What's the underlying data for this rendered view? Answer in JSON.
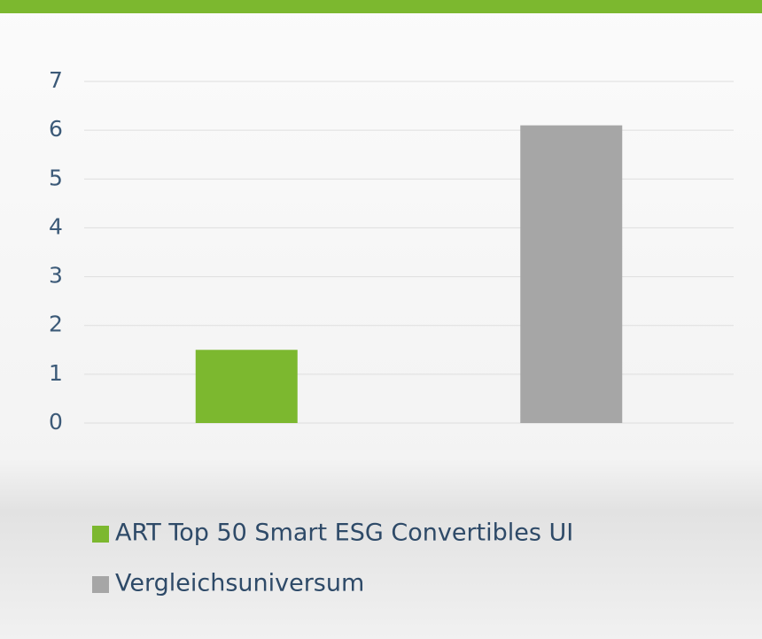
{
  "chart_data": {
    "type": "bar",
    "categories": [
      null
    ],
    "series": [
      {
        "name": "ART Top 50 Smart ESG Convertibles UI",
        "color": "#7cb82f",
        "values": [
          1.5
        ]
      },
      {
        "name": "Vergleichsuniversum",
        "color": "#a6a6a6",
        "values": [
          6.1
        ]
      }
    ],
    "ylim": [
      0,
      7
    ],
    "yticks": [
      0,
      1,
      2,
      3,
      4,
      5,
      6,
      7
    ],
    "grid": true
  }
}
